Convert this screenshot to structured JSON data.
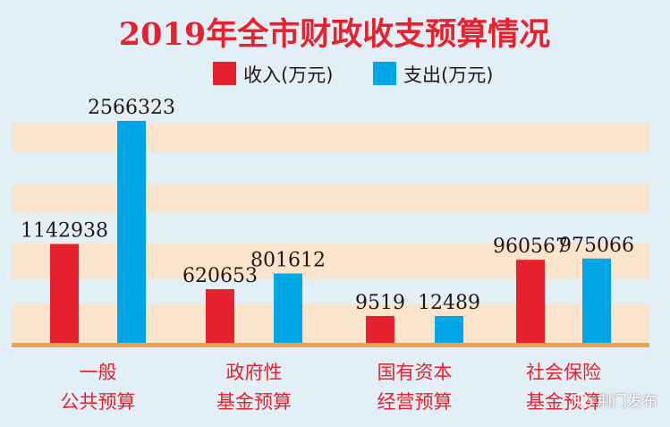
{
  "chart_data": {
    "type": "bar",
    "title": "2019年全市财政收支预算情况",
    "title_year": "2019",
    "title_rest": "年全市财政收支预算情况",
    "categories": [
      [
        "一般",
        "公共预算"
      ],
      [
        "政府性",
        "基金预算"
      ],
      [
        "国有资本",
        "经营预算"
      ],
      [
        "社会保险",
        "基金预算"
      ]
    ],
    "series": [
      {
        "name": "收入(万元)",
        "color": "#e8212e",
        "values": [
          1142938,
          620653,
          9519,
          960567
        ]
      },
      {
        "name": "支出(万元)",
        "color": "#00a6e5",
        "values": [
          2566323,
          801612,
          12489,
          975066
        ]
      }
    ],
    "ylim": [
      0,
      2566323
    ],
    "legend_position": "top-center",
    "xlabel": "",
    "ylabel": ""
  },
  "colors": {
    "background": "#e3eff6",
    "band": "#fbe3cc",
    "axis": "#f5a148",
    "title": "#e8212e",
    "category_text": "#e8212e",
    "value_text": "#231815"
  },
  "watermark": {
    "text": "荆门发布"
  }
}
